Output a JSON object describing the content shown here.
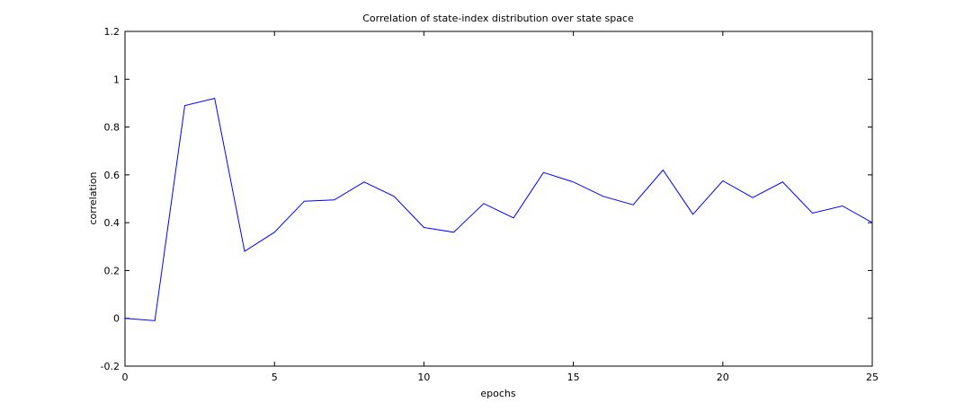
{
  "chart_data": {
    "type": "line",
    "title": "Correlation of state-index distribution over state space",
    "xlabel": "epochs",
    "ylabel": "correlation",
    "xlim": [
      0,
      25
    ],
    "ylim": [
      -0.2,
      1.2
    ],
    "xticks": [
      0,
      5,
      10,
      15,
      20,
      25
    ],
    "yticks": [
      -0.2,
      0,
      0.2,
      0.4,
      0.6,
      0.8,
      1,
      1.2
    ],
    "xtick_labels": [
      "0",
      "5",
      "10",
      "15",
      "20",
      "25"
    ],
    "ytick_labels": [
      "-0.2",
      "0",
      "0.2",
      "0.4",
      "0.6",
      "0.8",
      "1",
      "1.2"
    ],
    "grid": false,
    "legend": null,
    "series": [
      {
        "color": "#0000ff",
        "x": [
          0,
          1,
          2,
          3,
          4,
          5,
          6,
          7,
          8,
          9,
          10,
          11,
          12,
          13,
          14,
          15,
          16,
          17,
          18,
          19,
          20,
          21,
          22,
          23,
          24,
          25
        ],
        "values": [
          0.0,
          -0.01,
          0.89,
          0.92,
          0.28,
          0.36,
          0.49,
          0.495,
          0.57,
          0.51,
          0.38,
          0.36,
          0.48,
          0.42,
          0.61,
          0.57,
          0.51,
          0.475,
          0.62,
          0.435,
          0.575,
          0.505,
          0.57,
          0.44,
          0.47,
          0.4
        ]
      }
    ]
  }
}
